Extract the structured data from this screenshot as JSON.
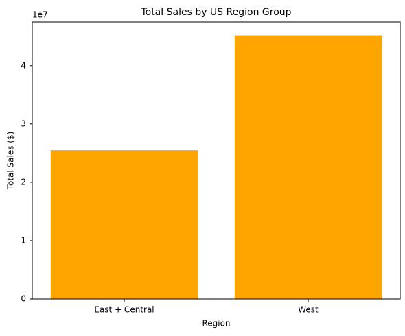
{
  "chart_data": {
    "type": "bar",
    "title": "Total Sales by US Region Group",
    "x_label": "Region",
    "y_label": "Total Sales ($)",
    "y_offset_label": "1e7",
    "categories": [
      "East + Central",
      "West"
    ],
    "values": [
      25500000,
      45200000
    ],
    "color": "#ffa500",
    "ylim": [
      0,
      47500000
    ],
    "yticks": [
      {
        "value": 0,
        "label": "0"
      },
      {
        "value": 10000000,
        "label": "1"
      },
      {
        "value": 20000000,
        "label": "2"
      },
      {
        "value": 30000000,
        "label": "3"
      },
      {
        "value": 40000000,
        "label": "4"
      }
    ],
    "grid": false
  }
}
